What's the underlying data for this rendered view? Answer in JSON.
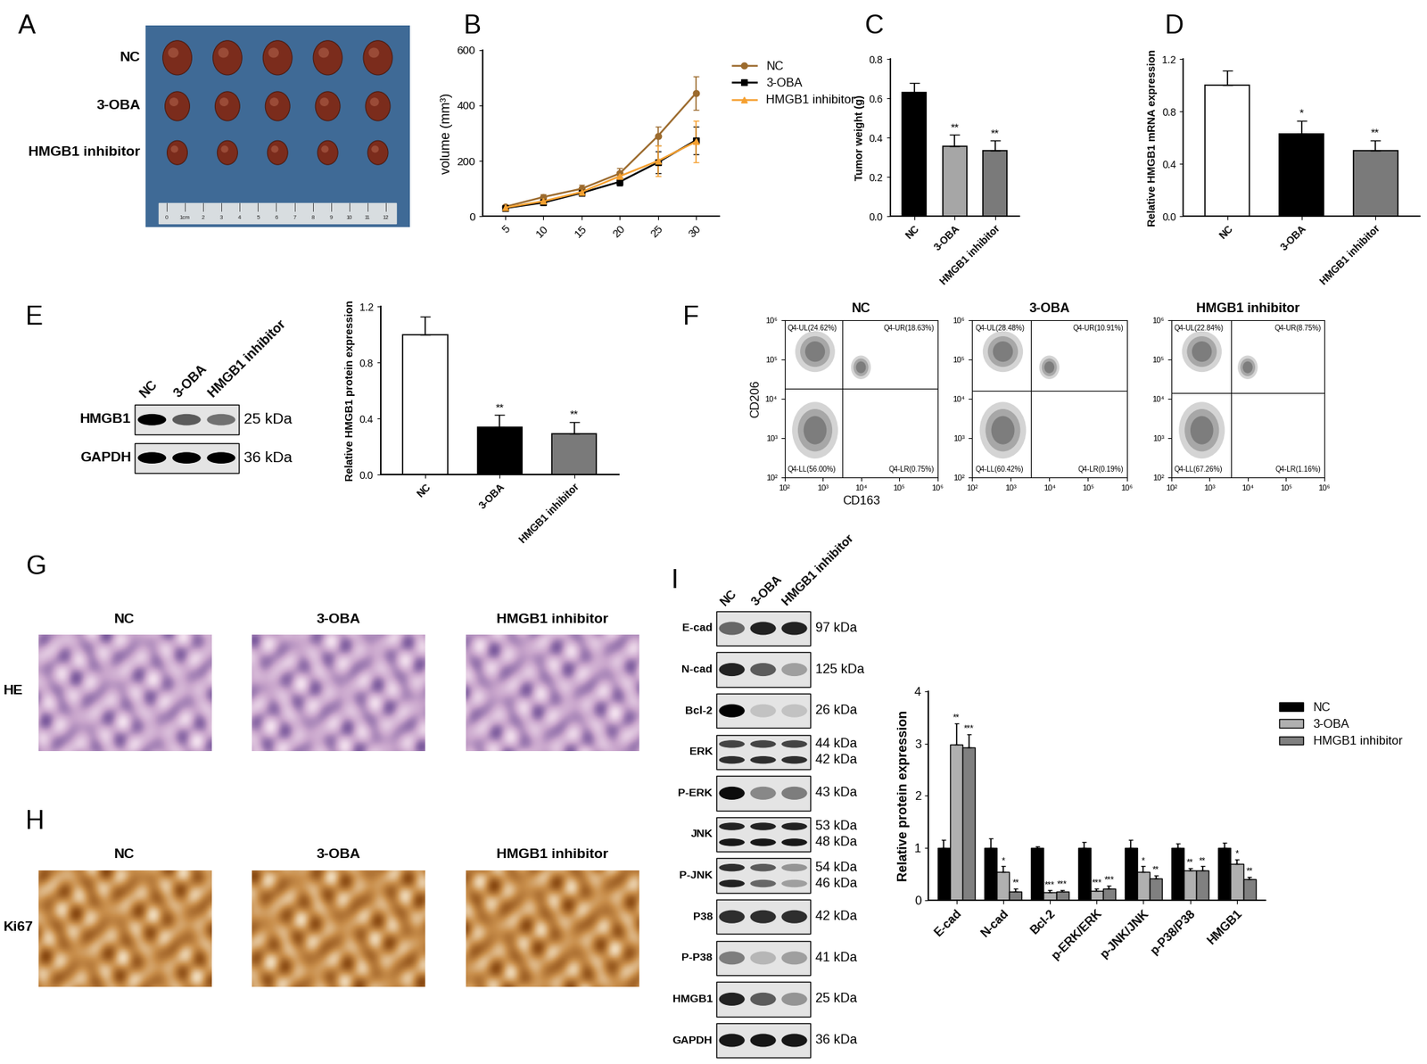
{
  "chart_data": [
    {
      "panel": "B",
      "type": "line",
      "x": [
        5,
        10,
        15,
        20,
        25,
        30
      ],
      "xlim": [
        2,
        33
      ],
      "xticks": [
        5,
        10,
        15,
        20,
        25,
        30
      ],
      "ylim": [
        0,
        600
      ],
      "yticks": [
        0,
        200,
        400,
        600
      ],
      "y_label": "volume (mm³)",
      "legend": "upper left",
      "series": [
        {
          "name": "NC",
          "color": "#9c6b2e",
          "marker": "o",
          "values": [
            35,
            70,
            100,
            155,
            290,
            445
          ],
          "errors": [
            6,
            10,
            15,
            18,
            35,
            60
          ]
        },
        {
          "name": "3-OBA",
          "color": "#000000",
          "marker": "s",
          "values": [
            30,
            50,
            85,
            125,
            195,
            275
          ],
          "errors": [
            5,
            8,
            10,
            15,
            40,
            50
          ]
        },
        {
          "name": "HMGB1 inhibitor",
          "color": "#f5a030",
          "marker": "^",
          "values": [
            32,
            55,
            88,
            145,
            200,
            270
          ],
          "errors": [
            5,
            8,
            10,
            15,
            55,
            75
          ]
        }
      ]
    },
    {
      "panel": "C",
      "type": "bar",
      "categories": [
        "NC",
        "3-OBA",
        "HMGB1 inhibitor"
      ],
      "values": [
        0.63,
        0.355,
        0.335
      ],
      "errors": [
        0.05,
        0.06,
        0.05
      ],
      "colors": [
        "#000000",
        "#a6a6a6",
        "#7a7a7a"
      ],
      "annotations": [
        null,
        "**",
        "**"
      ],
      "y_label": "Tumor weight (g)",
      "ylim": [
        0.0,
        0.8
      ],
      "yticks": [
        0.0,
        0.2,
        0.4,
        0.6,
        0.8
      ]
    },
    {
      "panel": "D",
      "type": "bar",
      "categories": [
        "NC",
        "3-OBA",
        "HMGB1 inhibitor"
      ],
      "values": [
        1.0,
        0.63,
        0.5
      ],
      "errors": [
        0.11,
        0.1,
        0.08
      ],
      "colors": [
        "#ffffff",
        "#000000",
        "#7a7a7a"
      ],
      "annotations": [
        null,
        "*",
        "**"
      ],
      "y_label": "Relative HMGB1 mRNA expression",
      "ylim": [
        0.0,
        1.2
      ],
      "yticks": [
        0.0,
        0.4,
        0.8,
        1.2
      ]
    },
    {
      "type": "bar",
      "categories": [
        "NC",
        "3-OBA",
        "HMGB1 inhibitor"
      ],
      "values": [
        1.0,
        0.34,
        0.29
      ],
      "errors": [
        0.13,
        0.085,
        0.085
      ],
      "colors": [
        "#ffffff",
        "#000000",
        "#7a7a7a"
      ],
      "annotations": [
        null,
        "**",
        "**"
      ],
      "y_label": "Relative HMGB1 protein expression",
      "ylim": [
        0.0,
        1.2
      ],
      "yticks": [
        0.0,
        0.4,
        0.8,
        1.2
      ]
    },
    {
      "panel": "F",
      "type": "flow_cytometry",
      "title": "NC",
      "x_label": "CD163",
      "y_label": "CD206",
      "log": true,
      "xlim": [
        100,
        1000000
      ],
      "ylim": [
        100,
        1000000
      ],
      "xticks": [
        {
          "value": 100,
          "label": "10²"
        },
        {
          "value": 1000,
          "label": "10³"
        },
        {
          "value": 10000,
          "label": "10⁴"
        },
        {
          "value": 100000,
          "label": "10⁵"
        },
        {
          "value": 1000000,
          "label": "10⁶"
        }
      ],
      "yticks": [
        {
          "value": 100,
          "label": "10²"
        },
        {
          "value": 1000,
          "label": "10³"
        },
        {
          "value": 10000,
          "label": "10⁴"
        },
        {
          "value": 100000,
          "label": "10⁵"
        },
        {
          "value": 1000000,
          "label": "10⁶"
        }
      ],
      "gates": {
        "x": 3200,
        "y": 18000
      },
      "quadrants": {
        "UL": "Q4-UL(24.62%)",
        "UR": "Q4-UR(18.63%)",
        "LL": "Q4-LL(56.00%)",
        "LR": "Q4-LR(0.75%)"
      }
    },
    {
      "type": "flow_cytometry",
      "title": "3-OBA",
      "log": true,
      "xlim": [
        100,
        1000000
      ],
      "ylim": [
        100,
        1000000
      ],
      "xticks": [
        {
          "value": 100,
          "label": "10²"
        },
        {
          "value": 1000,
          "label": "10³"
        },
        {
          "value": 10000,
          "label": "10⁴"
        },
        {
          "value": 100000,
          "label": "10⁵"
        },
        {
          "value": 1000000,
          "label": "10⁶"
        }
      ],
      "yticks": [
        {
          "value": 100,
          "label": "10²"
        },
        {
          "value": 1000,
          "label": "10³"
        },
        {
          "value": 10000,
          "label": "10⁴"
        },
        {
          "value": 100000,
          "label": "10⁵"
        },
        {
          "value": 1000000,
          "label": "10⁶"
        }
      ],
      "gates": {
        "x": 3300,
        "y": 16000
      },
      "quadrants": {
        "UL": "Q4-UL(28.48%)",
        "UR": "Q4-UR(10.91%)",
        "LL": "Q4-LL(60.42%)",
        "LR": "Q4-LR(0.19%)"
      }
    },
    {
      "type": "flow_cytometry",
      "title": "HMGB1 inhibitor",
      "log": true,
      "xlim": [
        100,
        1000000
      ],
      "ylim": [
        100,
        1000000
      ],
      "xticks": [
        {
          "value": 100,
          "label": "10²"
        },
        {
          "value": 1000,
          "label": "10³"
        },
        {
          "value": 10000,
          "label": "10⁴"
        },
        {
          "value": 100000,
          "label": "10⁵"
        },
        {
          "value": 1000000,
          "label": "10⁶"
        }
      ],
      "yticks": [
        {
          "value": 100,
          "label": "10²"
        },
        {
          "value": 1000,
          "label": "10³"
        },
        {
          "value": 10000,
          "label": "10⁴"
        },
        {
          "value": 100000,
          "label": "10⁵"
        },
        {
          "value": 1000000,
          "label": "10⁶"
        }
      ],
      "gates": {
        "x": 3700,
        "y": 14000
      },
      "quadrants": {
        "UL": "Q4-UL(22.84%)",
        "UR": "Q4-UR(8.75%)",
        "LL": "Q4-LL(67.26%)",
        "LR": "Q4-LR(1.16%)"
      }
    },
    {
      "type": "bar",
      "categories": [
        "E-cad",
        "N-cad",
        "Bcl-2",
        "p-ERK/ERK",
        "p-JNK/JNK",
        "p-P38/P38",
        "HMGB1"
      ],
      "y_label": "Relative protein expression",
      "ylim": [
        0,
        4
      ],
      "yticks": [
        0,
        1,
        2,
        3,
        4
      ],
      "legend": "upper left",
      "series": [
        {
          "name": "NC",
          "color": "#000000",
          "values": [
            1.0,
            1.0,
            1.0,
            1.0,
            1.0,
            1.0,
            1.0
          ],
          "errors": [
            0.15,
            0.18,
            0.03,
            0.12,
            0.15,
            0.08,
            0.1
          ],
          "annotations": [
            null,
            null,
            null,
            null,
            null,
            null,
            null
          ]
        },
        {
          "name": "3-OBA",
          "color": "#b0b0b0",
          "values": [
            2.98,
            0.55,
            0.15,
            0.18,
            0.55,
            0.57,
            0.7
          ],
          "errors": [
            0.4,
            0.1,
            0.04,
            0.04,
            0.1,
            0.05,
            0.08
          ],
          "annotations": [
            "**",
            "*",
            "***",
            "***",
            "*",
            "**",
            "*"
          ]
        },
        {
          "name": "HMGB1 inhibitor",
          "color": "#808080",
          "values": [
            2.92,
            0.17,
            0.17,
            0.23,
            0.42,
            0.57,
            0.4
          ],
          "errors": [
            0.25,
            0.05,
            0.03,
            0.05,
            0.05,
            0.08,
            0.05
          ],
          "annotations": [
            "***",
            "**",
            "***",
            "***",
            "**",
            "**",
            "**"
          ]
        }
      ]
    }
  ],
  "image_panels": [
    {
      "panel": "A",
      "type": "photo",
      "row_labels": [
        "NC",
        "3-OBA",
        "HMGB1 inhibitor"
      ],
      "ruler": [
        "0",
        "1cm",
        "2",
        "3",
        "4",
        "5",
        "6",
        "7",
        "8",
        "9",
        "10",
        "11",
        "12"
      ]
    },
    {
      "panel": "G",
      "type": "histology",
      "row_label": "HE",
      "titles": [
        "NC",
        "3-OBA",
        "HMGB1 inhibitor"
      ]
    },
    {
      "panel": "H",
      "type": "histology",
      "row_label": "Ki67",
      "titles": [
        "NC",
        "3-OBA",
        "HMGB1 inhibitor"
      ]
    }
  ],
  "blots": [
    {
      "panel": "E",
      "lanes": [
        "NC",
        "3-OBA",
        "HMGB1 inhibitor"
      ],
      "rows": [
        {
          "name": "HMGB1",
          "kda": [
            "25 kDa"
          ],
          "intensity": [
            [
              1.0,
              0.6,
              0.5
            ]
          ]
        },
        {
          "name": "GAPDH",
          "kda": [
            "36 kDa"
          ],
          "intensity": [
            [
              1.0,
              1.0,
              1.0
            ]
          ]
        }
      ]
    },
    {
      "panel": "I",
      "lanes": [
        "NC",
        "3-OBA",
        "HMGB1 inhibitor"
      ],
      "rows": [
        {
          "name": "E-cad",
          "kda": [
            "97 kDa"
          ],
          "intensity": [
            [
              0.55,
              0.85,
              0.85
            ]
          ]
        },
        {
          "name": "N-cad",
          "kda": [
            "125 kDa"
          ],
          "intensity": [
            [
              0.85,
              0.6,
              0.3
            ]
          ]
        },
        {
          "name": "Bcl-2",
          "kda": [
            "26 kDa"
          ],
          "intensity": [
            [
              1.0,
              0.15,
              0.15
            ]
          ]
        },
        {
          "name": "ERK",
          "kda": [
            "44 kDa",
            "42 kDa"
          ],
          "intensity": [
            [
              0.7,
              0.7,
              0.7
            ],
            [
              0.8,
              0.8,
              0.8
            ]
          ]
        },
        {
          "name": "P-ERK",
          "kda": [
            "43 kDa"
          ],
          "intensity": [
            [
              0.95,
              0.4,
              0.45
            ]
          ]
        },
        {
          "name": "JNK",
          "kda": [
            "53 kDa",
            "48 kDa"
          ],
          "intensity": [
            [
              0.85,
              0.85,
              0.85
            ],
            [
              0.9,
              0.9,
              0.9
            ]
          ]
        },
        {
          "name": "P-JNK",
          "kda": [
            "54 kDa",
            "46 kDa"
          ],
          "intensity": [
            [
              0.8,
              0.6,
              0.35
            ],
            [
              0.85,
              0.55,
              0.3
            ]
          ]
        },
        {
          "name": "P38",
          "kda": [
            "42 kDa"
          ],
          "intensity": [
            [
              0.8,
              0.8,
              0.8
            ]
          ]
        },
        {
          "name": "P-P38",
          "kda": [
            "41 kDa"
          ],
          "intensity": [
            [
              0.45,
              0.2,
              0.3
            ]
          ]
        },
        {
          "name": "HMGB1",
          "kda": [
            "25 kDa"
          ],
          "intensity": [
            [
              0.85,
              0.6,
              0.35
            ]
          ]
        },
        {
          "name": "GAPDH",
          "kda": [
            "36 kDa"
          ],
          "intensity": [
            [
              0.9,
              0.9,
              0.9
            ]
          ]
        }
      ]
    }
  ]
}
